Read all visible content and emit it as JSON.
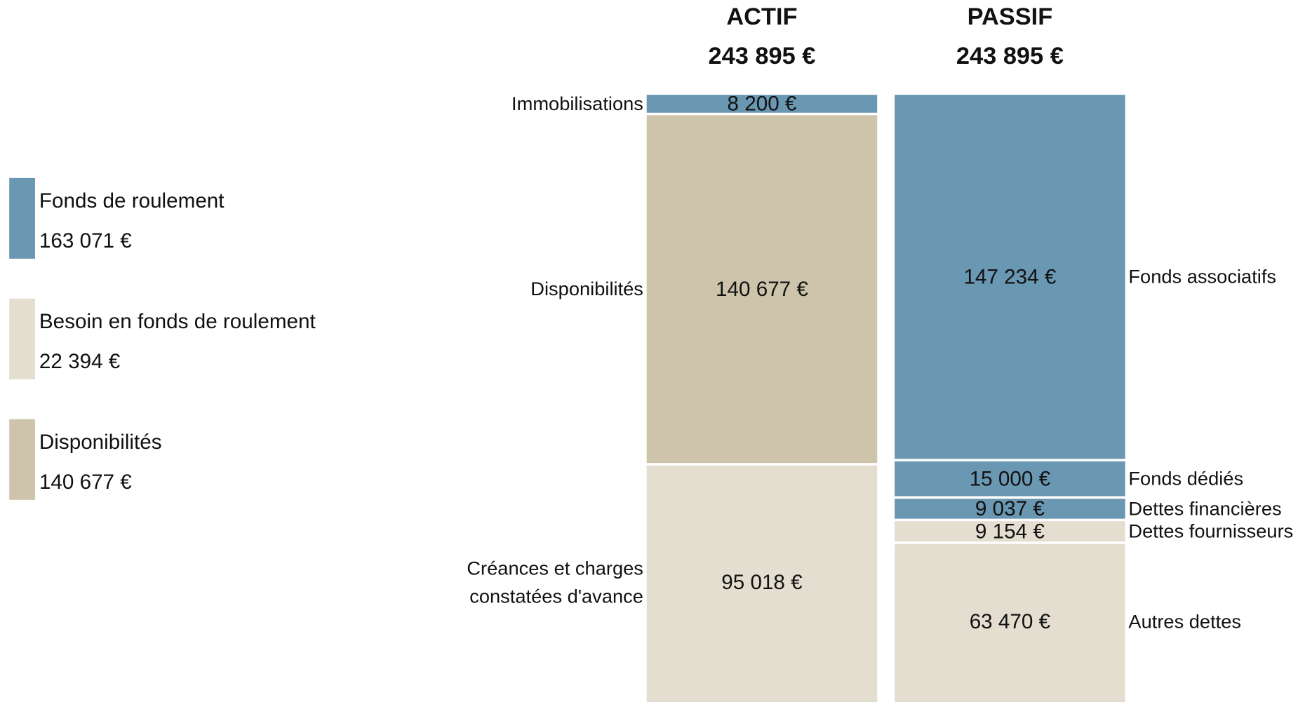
{
  "chart_data": {
    "type": "stacked_columns",
    "columns": [
      {
        "name": "ACTIF",
        "total_label": "243 895 €",
        "label_side": "left",
        "segments": [
          {
            "name": [
              "Immobilisations"
            ],
            "value": 8200,
            "value_label": "8 200 €",
            "color": "#6a97b1"
          },
          {
            "name": [
              "Disponibilités"
            ],
            "value": 140677,
            "value_label": "140 677 €",
            "color": "#cec4ac"
          },
          {
            "name": [
              "Créances et charges",
              "constatées d'avance"
            ],
            "value": 95018,
            "value_label": "95 018 €",
            "color": "#e3ded0"
          }
        ]
      },
      {
        "name": "PASSIF",
        "total_label": "243 895 €",
        "label_side": "right",
        "segments": [
          {
            "name": [
              "Fonds associatifs"
            ],
            "value": 147234,
            "value_label": "147 234 €",
            "color": "#6a97b1"
          },
          {
            "name": [
              "Fonds dédiés"
            ],
            "value": 15000,
            "value_label": "15 000 €",
            "color": "#6a97b1"
          },
          {
            "name": [
              "Dettes financières"
            ],
            "value": 9037,
            "value_label": "9 037 €",
            "color": "#6a97b1"
          },
          {
            "name": [
              "Dettes fournisseurs"
            ],
            "value": 9154,
            "value_label": "9 154 €",
            "color": "#e3ded0"
          },
          {
            "name": [
              "Autres dettes"
            ],
            "value": 63470,
            "value_label": "63 470 €",
            "color": "#e3ded0"
          }
        ]
      }
    ],
    "legend": [
      {
        "name": "Fonds de roulement",
        "label": "163 071 €",
        "color": "#6a97b1"
      },
      {
        "name": "Besoin en fonds de roulement",
        "label": "22 394 €",
        "color": "#e3ded0"
      },
      {
        "name": "Disponibilités",
        "label": "140 677 €",
        "color": "#cec4ac"
      }
    ]
  }
}
